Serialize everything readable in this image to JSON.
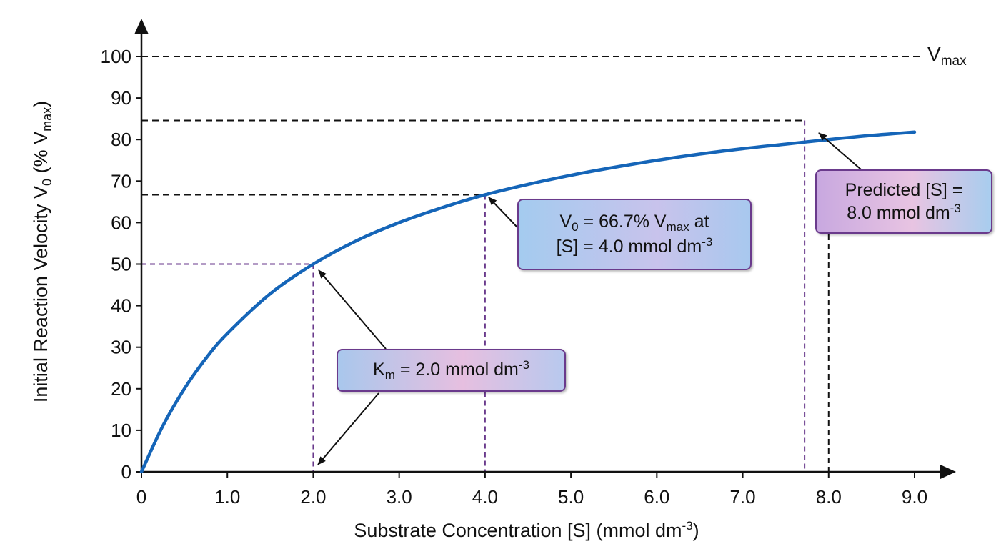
{
  "chart_data": {
    "type": "line",
    "xlabel": "Substrate Concentration [S] (mmol dm",
    "xlabel_sup": "-3",
    "xlabel_end": ")",
    "ylabel": "Initial Reaction Velocity V",
    "ylabel_sub": "0",
    "ylabel_mid": " (% V",
    "ylabel_sub2": "max",
    "ylabel_end": ")",
    "xlim": [
      0,
      9
    ],
    "ylim": [
      0,
      100
    ],
    "x_ticks": [
      0,
      1,
      2,
      3,
      4,
      5,
      6,
      7,
      8,
      9
    ],
    "x_tick_labels": [
      "0",
      "1.0",
      "2.0",
      "3.0",
      "4.0",
      "5.0",
      "6.0",
      "7.0",
      "8.0",
      "9.0"
    ],
    "y_ticks": [
      0,
      10,
      20,
      30,
      40,
      50,
      60,
      70,
      80,
      90,
      100
    ],
    "y_tick_labels": [
      "0",
      "10",
      "20",
      "30",
      "40",
      "50",
      "60",
      "70",
      "80",
      "90",
      "100"
    ],
    "grid": false,
    "series": [
      {
        "color": "#1565b8",
        "x": [
          0,
          0.25,
          0.5,
          0.75,
          1.0,
          1.5,
          2.0,
          2.5,
          3.0,
          3.5,
          4.0,
          4.5,
          5.0,
          5.5,
          6.0,
          6.5,
          7.0,
          7.5,
          8.0,
          8.5,
          9.0
        ],
        "y": [
          0,
          11.1,
          20.0,
          27.3,
          33.3,
          42.9,
          50.0,
          55.6,
          60.0,
          63.6,
          66.7,
          69.2,
          71.4,
          73.3,
          75.0,
          76.5,
          77.8,
          78.9,
          80.0,
          81.0,
          81.8
        ]
      }
    ],
    "reference_lines": [
      {
        "kind": "vmax",
        "y": 100,
        "x_end": 9.0,
        "color": "#111111"
      },
      {
        "kind": "km",
        "x": 2.0,
        "y": 50,
        "color": "#6a3a8c"
      },
      {
        "kind": "v0",
        "x": 4.0,
        "y": 66.7,
        "color": "#6a3a8c"
      },
      {
        "kind": "pred",
        "x": 7.72,
        "y": 84.6,
        "color": "#6a3a8c"
      },
      {
        "kind": "pred-guide",
        "x": 8.0,
        "color": "#111111"
      }
    ],
    "annotations": {
      "vmax_label": {
        "main": "V",
        "sub": "max"
      },
      "km": {
        "prefix": "K",
        "sub": "m",
        "mid": " = 2.0 mmol dm",
        "sup": "-3"
      },
      "v0": {
        "line1_prefix": "V",
        "line1_sub": "0",
        "line1_mid": " = 66.7% V",
        "line1_sub2": "max",
        "line1_end": " at",
        "line2": "[S] = 4.0 mmol dm",
        "line2_sup": "-3"
      },
      "pred": {
        "line1": "Predicted [S] =",
        "line2": "8.0 mmol dm",
        "line2_sup": "-3"
      }
    }
  },
  "colors": {
    "curve": "#1565b8",
    "axis": "#111111",
    "purple_dash": "#6a3a8c",
    "callout_border": "#6a3a8c"
  }
}
